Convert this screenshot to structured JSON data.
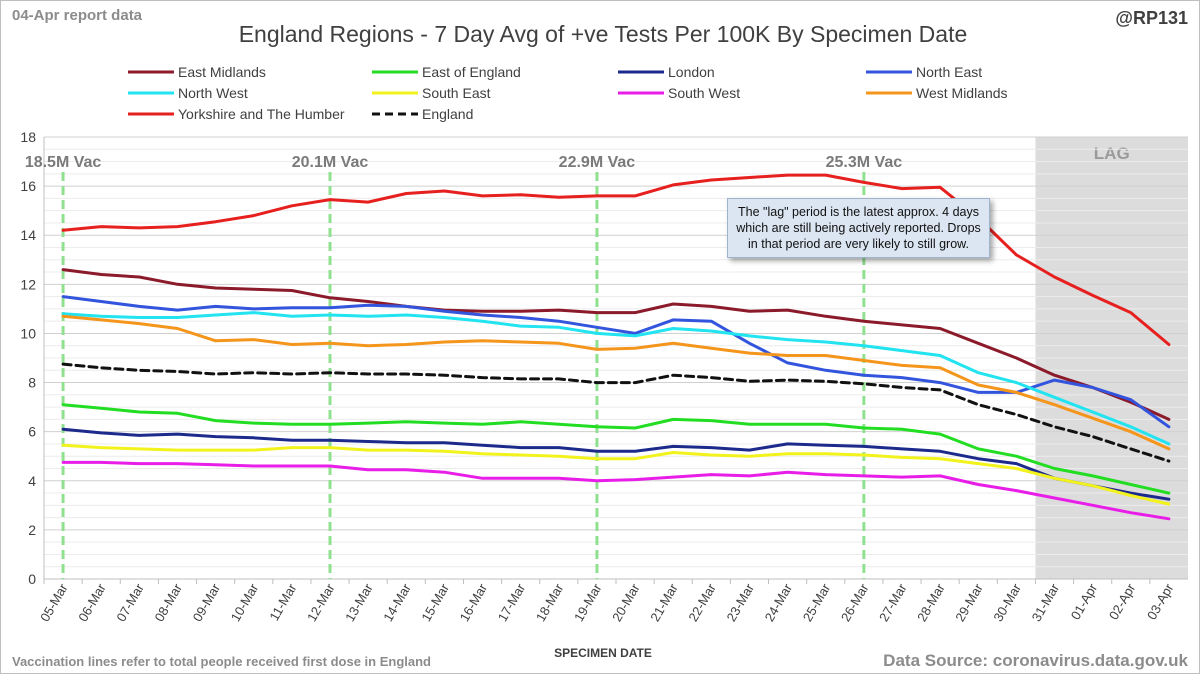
{
  "header": {
    "report_label": "04-Apr report data",
    "handle": "@RP131"
  },
  "footer": {
    "vaccination_note": "Vaccination lines refer to total people received first dose in England",
    "data_source": "Data Source: coronavirus.data.gov.uk"
  },
  "annotation": {
    "lag_note": "The \"lag\" period is the latest approx. 4 days which are still being actively reported. Drops in that period are very likely to still grow."
  },
  "chart_data": {
    "type": "line",
    "title": "England Regions - 7 Day Avg of +ve Tests Per 100K By Specimen Date",
    "xlabel": "SPECIMEN DATE",
    "ylabel": "",
    "ylim": [
      0,
      18
    ],
    "yticks": [
      0,
      2,
      4,
      6,
      8,
      10,
      12,
      14,
      16,
      18
    ],
    "grid": true,
    "legend_position": "top",
    "categories": [
      "05-Mar",
      "06-Mar",
      "07-Mar",
      "08-Mar",
      "09-Mar",
      "10-Mar",
      "11-Mar",
      "12-Mar",
      "13-Mar",
      "14-Mar",
      "15-Mar",
      "16-Mar",
      "17-Mar",
      "18-Mar",
      "19-Mar",
      "20-Mar",
      "21-Mar",
      "22-Mar",
      "23-Mar",
      "24-Mar",
      "25-Mar",
      "26-Mar",
      "27-Mar",
      "28-Mar",
      "29-Mar",
      "30-Mar",
      "31-Mar",
      "01-Apr",
      "02-Apr",
      "03-Apr"
    ],
    "lag_region": {
      "label": "LAG",
      "from": "31-Mar",
      "to": "03-Apr"
    },
    "vaccination_markers": [
      {
        "date": "05-Mar",
        "label": "18.5M Vac"
      },
      {
        "date": "12-Mar",
        "label": "20.1M Vac"
      },
      {
        "date": "19-Mar",
        "label": "22.9M Vac"
      },
      {
        "date": "26-Mar",
        "label": "25.3M Vac"
      }
    ],
    "series": [
      {
        "name": "East Midlands",
        "color": "#8b1a2b",
        "dashed": false,
        "values": [
          12.6,
          12.4,
          12.3,
          12.0,
          11.85,
          11.8,
          11.75,
          11.45,
          11.3,
          11.1,
          10.95,
          10.9,
          10.9,
          10.95,
          10.85,
          10.85,
          11.2,
          11.1,
          10.9,
          10.95,
          10.7,
          10.5,
          10.35,
          10.2,
          9.6,
          9.0,
          8.3,
          7.8,
          7.2,
          6.5
        ]
      },
      {
        "name": "East of England",
        "color": "#22dd22",
        "dashed": false,
        "values": [
          7.1,
          6.95,
          6.8,
          6.75,
          6.45,
          6.35,
          6.3,
          6.3,
          6.35,
          6.4,
          6.35,
          6.3,
          6.4,
          6.3,
          6.2,
          6.15,
          6.5,
          6.45,
          6.3,
          6.3,
          6.3,
          6.15,
          6.1,
          5.9,
          5.3,
          5.0,
          4.5,
          4.2,
          3.85,
          3.5
        ]
      },
      {
        "name": "London",
        "color": "#1c2a8c",
        "dashed": false,
        "values": [
          6.1,
          5.95,
          5.85,
          5.9,
          5.8,
          5.75,
          5.65,
          5.65,
          5.6,
          5.55,
          5.55,
          5.45,
          5.35,
          5.35,
          5.2,
          5.2,
          5.4,
          5.35,
          5.25,
          5.5,
          5.45,
          5.4,
          5.3,
          5.2,
          4.9,
          4.7,
          4.1,
          3.8,
          3.5,
          3.25
        ]
      },
      {
        "name": "North East",
        "color": "#3355dd",
        "dashed": false,
        "values": [
          11.5,
          11.3,
          11.1,
          10.95,
          11.1,
          11.0,
          11.05,
          11.05,
          11.15,
          11.1,
          10.9,
          10.75,
          10.65,
          10.5,
          10.25,
          10.0,
          10.55,
          10.5,
          9.6,
          8.8,
          8.5,
          8.3,
          8.2,
          8.0,
          7.6,
          7.6,
          8.1,
          7.8,
          7.3,
          6.2
        ]
      },
      {
        "name": "North West",
        "color": "#22e3f0",
        "dashed": false,
        "values": [
          10.8,
          10.7,
          10.65,
          10.65,
          10.75,
          10.85,
          10.7,
          10.75,
          10.7,
          10.75,
          10.65,
          10.5,
          10.3,
          10.25,
          10.0,
          9.9,
          10.2,
          10.1,
          9.9,
          9.75,
          9.65,
          9.5,
          9.3,
          9.1,
          8.4,
          8.0,
          7.4,
          6.8,
          6.2,
          5.5
        ]
      },
      {
        "name": "South East",
        "color": "#f2f21c",
        "dashed": false,
        "values": [
          5.45,
          5.35,
          5.3,
          5.25,
          5.25,
          5.25,
          5.35,
          5.35,
          5.25,
          5.25,
          5.2,
          5.1,
          5.05,
          5.0,
          4.9,
          4.9,
          5.15,
          5.05,
          5.0,
          5.1,
          5.1,
          5.05,
          4.95,
          4.9,
          4.7,
          4.5,
          4.1,
          3.8,
          3.4,
          3.05
        ]
      },
      {
        "name": "South West",
        "color": "#e81ee8",
        "dashed": false,
        "values": [
          4.75,
          4.75,
          4.7,
          4.7,
          4.65,
          4.6,
          4.6,
          4.6,
          4.45,
          4.45,
          4.35,
          4.1,
          4.1,
          4.1,
          4.0,
          4.05,
          4.15,
          4.25,
          4.2,
          4.35,
          4.25,
          4.2,
          4.15,
          4.2,
          3.85,
          3.6,
          3.3,
          3.0,
          2.7,
          2.45
        ]
      },
      {
        "name": "West Midlands",
        "color": "#f4951c",
        "dashed": false,
        "values": [
          10.7,
          10.55,
          10.4,
          10.2,
          9.7,
          9.75,
          9.55,
          9.6,
          9.5,
          9.55,
          9.65,
          9.7,
          9.65,
          9.6,
          9.35,
          9.4,
          9.6,
          9.4,
          9.2,
          9.1,
          9.1,
          8.9,
          8.7,
          8.6,
          7.9,
          7.6,
          7.1,
          6.55,
          6.0,
          5.3
        ]
      },
      {
        "name": "Yorkshire and The Humber",
        "color": "#e6201e",
        "dashed": false,
        "values": [
          14.2,
          14.35,
          14.3,
          14.35,
          14.55,
          14.8,
          15.2,
          15.45,
          15.35,
          15.7,
          15.8,
          15.6,
          15.65,
          15.55,
          15.6,
          15.6,
          16.05,
          16.25,
          16.35,
          16.45,
          16.45,
          16.15,
          15.9,
          15.95,
          14.7,
          13.2,
          12.3,
          11.55,
          10.85,
          9.55
        ]
      },
      {
        "name": "England",
        "color": "#111111",
        "dashed": true,
        "values": [
          8.75,
          8.6,
          8.5,
          8.45,
          8.35,
          8.4,
          8.35,
          8.4,
          8.35,
          8.35,
          8.3,
          8.2,
          8.15,
          8.15,
          8.0,
          8.0,
          8.3,
          8.2,
          8.05,
          8.1,
          8.05,
          7.95,
          7.8,
          7.7,
          7.1,
          6.7,
          6.2,
          5.8,
          5.3,
          4.8
        ]
      }
    ]
  }
}
